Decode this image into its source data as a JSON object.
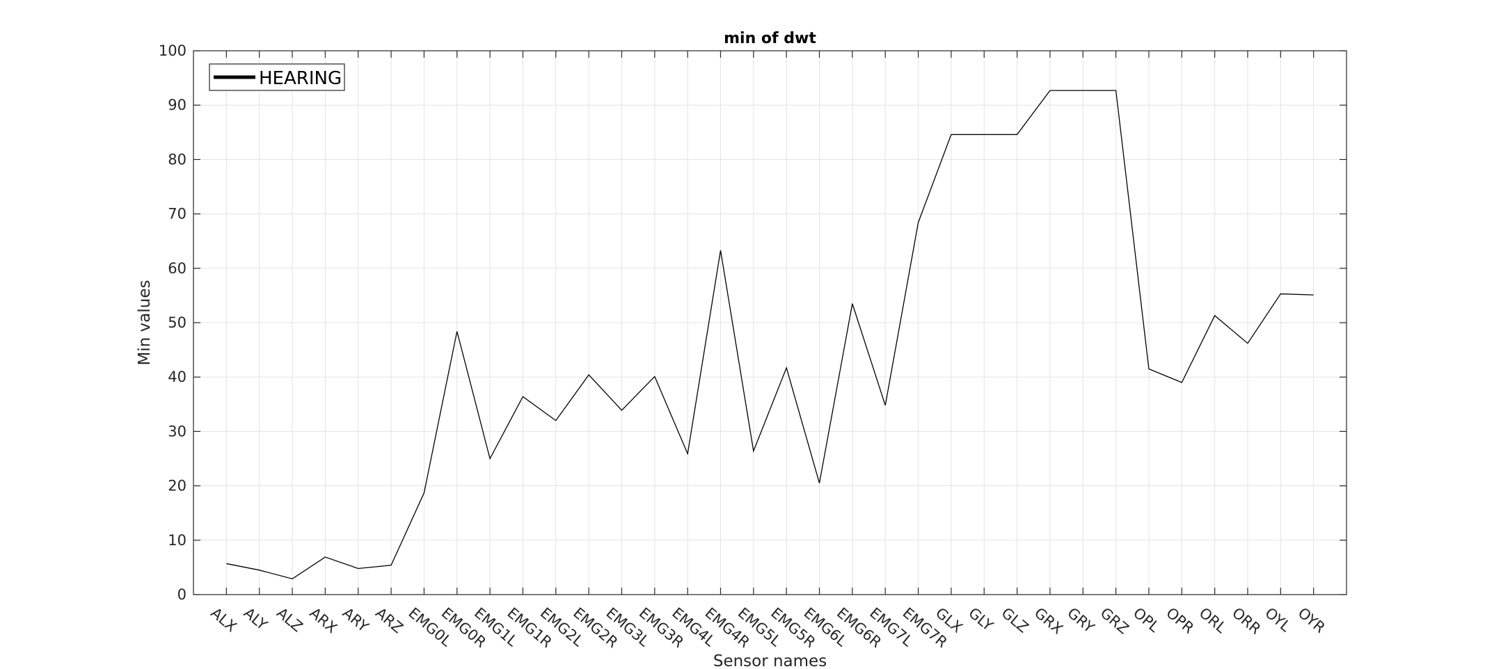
{
  "chart_data": {
    "type": "line",
    "title": "min of dwt",
    "xlabel": "Sensor names",
    "ylabel": "Min values",
    "ylim": [
      0,
      100
    ],
    "yticks": [
      0,
      10,
      20,
      30,
      40,
      50,
      60,
      70,
      80,
      90,
      100
    ],
    "grid": true,
    "legend_position": "top-left",
    "categories": [
      "ALX",
      "ALY",
      "ALZ",
      "ARX",
      "ARY",
      "ARZ",
      "EMG0L",
      "EMG0R",
      "EMG1L",
      "EMG1R",
      "EMG2L",
      "EMG2R",
      "EMG3L",
      "EMG3R",
      "EMG4L",
      "EMG4R",
      "EMG5L",
      "EMG5R",
      "EMG6L",
      "EMG6R",
      "EMG7L",
      "EMG7R",
      "GLX",
      "GLY",
      "GLZ",
      "GRX",
      "GRY",
      "GRZ",
      "OPL",
      "OPR",
      "ORL",
      "ORR",
      "OYL",
      "OYR"
    ],
    "series": [
      {
        "name": "HEARING",
        "color": "#000000",
        "values": [
          5.7,
          4.5,
          2.9,
          6.9,
          4.8,
          5.4,
          18.7,
          48.4,
          25.0,
          36.4,
          32.0,
          40.4,
          33.9,
          40.1,
          25.9,
          63.3,
          26.4,
          41.7,
          20.5,
          53.5,
          34.8,
          68.4,
          84.6,
          84.6,
          84.6,
          92.7,
          92.7,
          92.7,
          41.5,
          39.0,
          51.3,
          46.2,
          55.3,
          55.1
        ]
      }
    ]
  }
}
